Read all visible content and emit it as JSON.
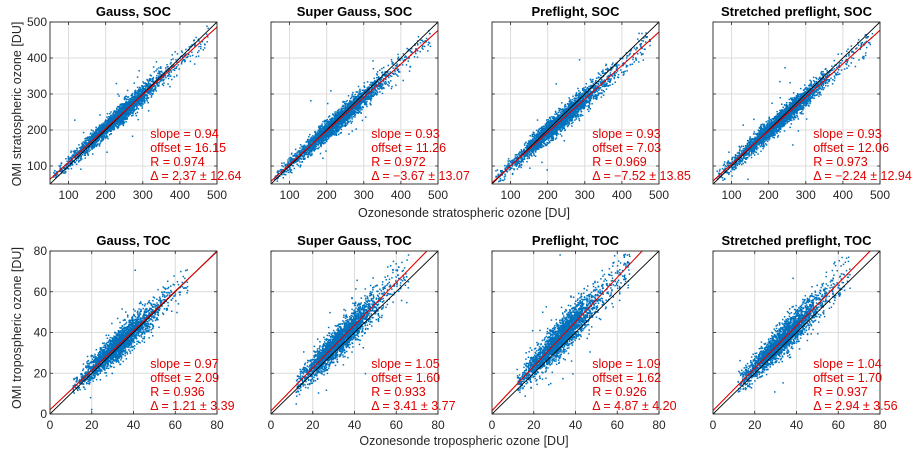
{
  "figure": {
    "ylabel_top": "OMI stratospheric ozone [DU]",
    "xlabel_top": "Ozonesonde stratospheric ozone [DU]",
    "ylabel_bottom": "OMI tropospheric ozone [DU]",
    "xlabel_bottom": "Ozonesonde tropospheric ozone [DU]"
  },
  "colors": {
    "points": "#0072bd",
    "fit": "#e00000",
    "identity": "#000000",
    "grid": "#dcdcdc",
    "axes": "#262626"
  },
  "chart_data": [
    {
      "type": "scatter",
      "title": "Gauss, SOC",
      "xlim": [
        50,
        500
      ],
      "ylim": [
        50,
        500
      ],
      "xticks": [
        100,
        200,
        300,
        400,
        500
      ],
      "yticks": [
        100,
        200,
        300,
        400,
        500
      ],
      "xticklabels": [
        "100",
        "200",
        "300",
        "400",
        "500"
      ],
      "yticklabels": [
        "100",
        "200",
        "300",
        "400",
        "500"
      ],
      "grid": true,
      "slope": 0.94,
      "offset": 16.15,
      "stats": [
        "slope = 0.94",
        "offset = 16.15",
        "R = 0.974",
        "Δ = 2.37 ± 12.64"
      ],
      "n_points": 2600,
      "x_range": [
        60,
        480
      ],
      "x_center": 230,
      "x_spread": 60,
      "y_scatter": 12.6
    },
    {
      "type": "scatter",
      "title": "Super Gauss, SOC",
      "xlim": [
        50,
        500
      ],
      "ylim": [
        50,
        500
      ],
      "xticks": [
        100,
        200,
        300,
        400,
        500
      ],
      "yticks": [
        100,
        200,
        300,
        400,
        500
      ],
      "xticklabels": [
        "100",
        "200",
        "300",
        "400",
        "500"
      ],
      "yticklabels": [
        "",
        "",
        "",
        "",
        ""
      ],
      "grid": true,
      "slope": 0.93,
      "offset": 11.26,
      "stats": [
        "slope = 0.93",
        "offset = 11.26",
        "R = 0.972",
        "Δ = −3.67 ± 13.07"
      ],
      "n_points": 2600,
      "x_range": [
        60,
        480
      ],
      "x_center": 230,
      "x_spread": 60,
      "y_scatter": 13.1
    },
    {
      "type": "scatter",
      "title": "Preflight, SOC",
      "xlim": [
        50,
        500
      ],
      "ylim": [
        50,
        500
      ],
      "xticks": [
        100,
        200,
        300,
        400,
        500
      ],
      "yticks": [
        100,
        200,
        300,
        400,
        500
      ],
      "xticklabels": [
        "100",
        "200",
        "300",
        "400",
        "500"
      ],
      "yticklabels": [
        "",
        "",
        "",
        "",
        ""
      ],
      "grid": true,
      "slope": 0.93,
      "offset": 7.03,
      "stats": [
        "slope = 0.93",
        "offset = 7.03",
        "R = 0.969",
        "Δ = −7.52 ± 13.85"
      ],
      "n_points": 2600,
      "x_range": [
        60,
        480
      ],
      "x_center": 230,
      "x_spread": 60,
      "y_scatter": 13.9
    },
    {
      "type": "scatter",
      "title": "Stretched preflight, SOC",
      "xlim": [
        50,
        500
      ],
      "ylim": [
        50,
        500
      ],
      "xticks": [
        100,
        200,
        300,
        400,
        500
      ],
      "yticks": [
        100,
        200,
        300,
        400,
        500
      ],
      "xticklabels": [
        "100",
        "200",
        "300",
        "400",
        "500"
      ],
      "yticklabels": [
        "",
        "",
        "",
        "",
        ""
      ],
      "grid": true,
      "slope": 0.93,
      "offset": 12.06,
      "stats": [
        "slope = 0.93",
        "offset = 12.06",
        "R = 0.973",
        "Δ = −2.24 ± 12.94"
      ],
      "n_points": 2600,
      "x_range": [
        60,
        480
      ],
      "x_center": 230,
      "x_spread": 60,
      "y_scatter": 12.9
    },
    {
      "type": "scatter",
      "title": "Gauss, TOC",
      "xlim": [
        0,
        80
      ],
      "ylim": [
        0,
        80
      ],
      "xticks": [
        0,
        20,
        40,
        60,
        80
      ],
      "yticks": [
        0,
        20,
        40,
        60,
        80
      ],
      "xticklabels": [
        "0",
        "20",
        "40",
        "60",
        "80"
      ],
      "yticklabels": [
        "0",
        "20",
        "40",
        "60",
        "80"
      ],
      "grid": true,
      "slope": 0.97,
      "offset": 2.09,
      "stats": [
        "slope = 0.97",
        "offset = 2.09",
        "R = 0.936",
        "Δ = 1.21 ± 3.39"
      ],
      "n_points": 2400,
      "x_range": [
        11,
        66
      ],
      "x_center": 33,
      "x_spread": 9,
      "y_scatter": 3.4
    },
    {
      "type": "scatter",
      "title": "Super Gauss, TOC",
      "xlim": [
        0,
        80
      ],
      "ylim": [
        0,
        80
      ],
      "xticks": [
        0,
        20,
        40,
        60,
        80
      ],
      "yticks": [
        0,
        20,
        40,
        60,
        80
      ],
      "xticklabels": [
        "0",
        "20",
        "40",
        "60",
        "80"
      ],
      "yticklabels": [
        "",
        "",
        "",
        "",
        ""
      ],
      "grid": true,
      "slope": 1.05,
      "offset": 1.6,
      "stats": [
        "slope = 1.05",
        "offset = 1.60",
        "R = 0.933",
        "Δ = 3.41 ± 3.77"
      ],
      "n_points": 2400,
      "x_range": [
        12,
        66
      ],
      "x_center": 33,
      "x_spread": 9,
      "y_scatter": 3.8
    },
    {
      "type": "scatter",
      "title": "Preflight, TOC",
      "xlim": [
        0,
        80
      ],
      "ylim": [
        0,
        80
      ],
      "xticks": [
        0,
        20,
        40,
        60,
        80
      ],
      "yticks": [
        0,
        20,
        40,
        60,
        80
      ],
      "xticklabels": [
        "0",
        "20",
        "40",
        "60",
        "80"
      ],
      "yticklabels": [
        "",
        "",
        "",
        "",
        ""
      ],
      "grid": true,
      "slope": 1.09,
      "offset": 1.62,
      "stats": [
        "slope = 1.09",
        "offset = 1.62",
        "R = 0.926",
        "Δ = 4.87 ± 4.20"
      ],
      "n_points": 2400,
      "x_range": [
        12,
        66
      ],
      "x_center": 33,
      "x_spread": 9,
      "y_scatter": 4.2
    },
    {
      "type": "scatter",
      "title": "Stretched preflight, TOC",
      "xlim": [
        0,
        80
      ],
      "ylim": [
        0,
        80
      ],
      "xticks": [
        0,
        20,
        40,
        60,
        80
      ],
      "yticks": [
        0,
        20,
        40,
        60,
        80
      ],
      "xticklabels": [
        "0",
        "20",
        "40",
        "60",
        "80"
      ],
      "yticklabels": [
        "",
        "",
        "",
        "",
        ""
      ],
      "grid": true,
      "slope": 1.04,
      "offset": 1.7,
      "stats": [
        "slope = 1.04",
        "offset = 1.70",
        "R = 0.937",
        "Δ = 2.94 ± 3.56"
      ],
      "n_points": 2400,
      "x_range": [
        12,
        66
      ],
      "x_center": 33,
      "x_spread": 9,
      "y_scatter": 3.6
    }
  ]
}
